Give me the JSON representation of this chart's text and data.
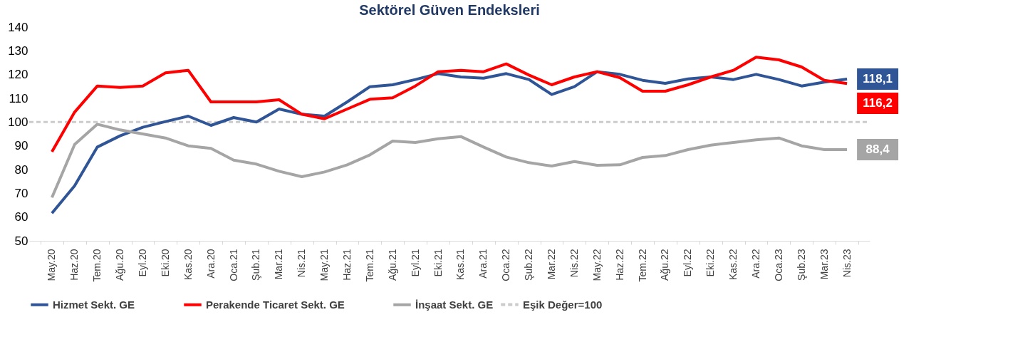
{
  "chart_data": {
    "type": "line",
    "title": "Sektörel Güven Endeksleri",
    "categories": [
      "May.20",
      "Haz.20",
      "Tem.20",
      "Ağu.20",
      "Eyl.20",
      "Eki.20",
      "Kas.20",
      "Ara.20",
      "Oca.21",
      "Şub.21",
      "Mar.21",
      "Nis.21",
      "May.21",
      "Haz.21",
      "Tem.21",
      "Ağu.21",
      "Eyl.21",
      "Eki.21",
      "Kas.21",
      "Ara.21",
      "Oca.22",
      "Şub.22",
      "Mar.22",
      "Nis.22",
      "May.22",
      "Haz.22",
      "Tem.22",
      "Ağu.22",
      "Eyl.22",
      "Eki.22",
      "Kas.22",
      "Ara.22",
      "Oca.23",
      "Şub.23",
      "Mar.23",
      "Nis.23"
    ],
    "series": [
      {
        "name": "Hizmet Sekt. GE",
        "color": "#2f5597",
        "values": [
          61.6,
          73.2,
          89.5,
          94.2,
          97.8,
          100.2,
          102.5,
          98.6,
          101.9,
          100,
          105.5,
          103.3,
          102.5,
          108.5,
          114.9,
          115.7,
          117.9,
          120.4,
          119,
          118.5,
          120.4,
          117.9,
          111.6,
          114.9,
          121.2,
          120.1,
          117.6,
          116.3,
          118.2,
          119,
          117.9,
          120.1,
          117.9,
          115.2,
          116.8,
          118.1
        ],
        "value_labels": [
          null,
          null,
          null,
          null,
          null,
          null,
          null,
          null,
          null,
          null,
          null,
          null,
          null,
          null,
          null,
          null,
          null,
          null,
          null,
          null,
          null,
          null,
          null,
          null,
          null,
          null,
          null,
          null,
          null,
          null,
          null,
          null,
          null,
          null,
          null,
          "118,1"
        ]
      },
      {
        "name": "Perakende Ticaret Sekt. GE",
        "color": "#ff0000",
        "values": [
          87.5,
          104.2,
          115.2,
          114.6,
          115.2,
          120.7,
          121.8,
          108.5,
          108.5,
          108.5,
          109.4,
          103.3,
          101.4,
          105.5,
          109.6,
          110.2,
          115.2,
          121.2,
          121.8,
          121.2,
          124.5,
          119.8,
          115.7,
          119,
          121.2,
          118.7,
          113,
          113,
          115.7,
          119,
          121.8,
          127.3,
          126.2,
          123.2,
          117.6,
          116.2
        ],
        "value_labels": [
          null,
          null,
          null,
          null,
          null,
          null,
          null,
          null,
          null,
          null,
          null,
          null,
          null,
          null,
          null,
          null,
          null,
          null,
          null,
          null,
          null,
          null,
          null,
          null,
          null,
          null,
          null,
          null,
          null,
          null,
          null,
          null,
          null,
          null,
          null,
          "116,2"
        ]
      },
      {
        "name": "İnşaat Sekt. GE",
        "color": "#a5a5a5",
        "values": [
          68.2,
          90.6,
          99.1,
          96.7,
          95,
          93.3,
          90,
          88.9,
          84,
          82.3,
          79.3,
          77,
          79,
          82,
          86.2,
          92,
          91.4,
          93,
          93.9,
          89.5,
          85.3,
          82.9,
          81.5,
          83.4,
          81.8,
          82,
          85.1,
          85.9,
          88.4,
          90.3,
          91.4,
          92.5,
          93.3,
          90,
          88.4,
          88.4
        ],
        "value_labels": [
          null,
          null,
          null,
          null,
          null,
          null,
          null,
          null,
          null,
          null,
          null,
          null,
          null,
          null,
          null,
          null,
          null,
          null,
          null,
          null,
          null,
          null,
          null,
          null,
          null,
          null,
          null,
          null,
          null,
          null,
          null,
          null,
          null,
          null,
          null,
          "88,4"
        ]
      }
    ],
    "ref_lines": [
      {
        "axis": "y",
        "value": 100,
        "label": "Eşik Değer=100",
        "color": "#cccccc",
        "line_style": "dashed"
      }
    ],
    "ylim": [
      50,
      140
    ],
    "yticks": [
      50,
      60,
      70,
      80,
      90,
      100,
      110,
      120,
      130,
      140
    ],
    "grid": false,
    "legend": "bottom",
    "line_style": "solid",
    "marker": "none"
  }
}
